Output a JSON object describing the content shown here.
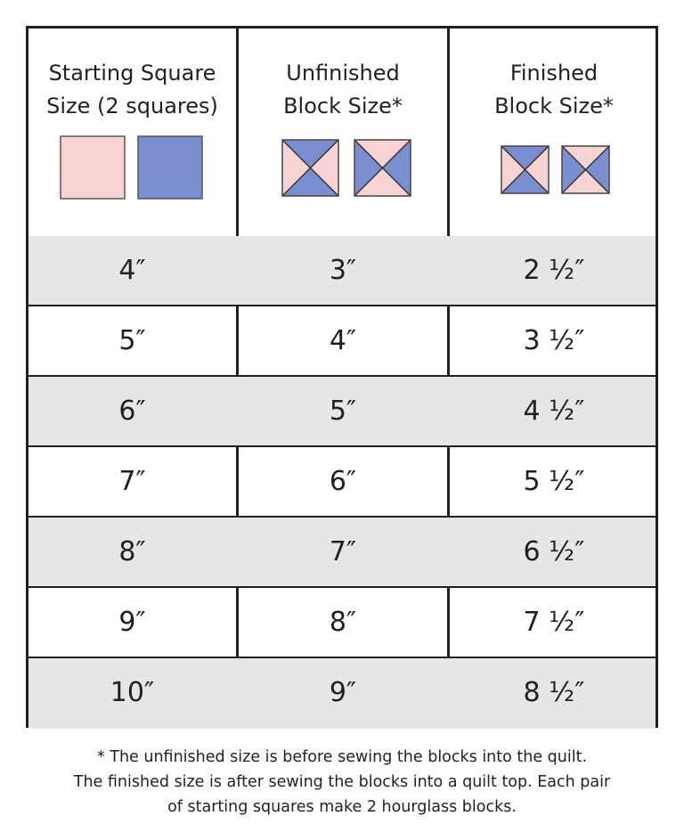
{
  "headers": [
    "Starting Square\nSize (2 squares)",
    "Unfinished\nBlock Size*",
    "Finished\nBlock Size*"
  ],
  "colors": {
    "pink": "#f7d3d3",
    "blue": "#7b8fd0",
    "row_grey": "#e6e6e8",
    "line": "#231f20"
  },
  "header_icons": [
    "pink-square",
    "blue-square",
    "hourglass-block-blue-top",
    "hourglass-block-pink-top"
  ],
  "rows": [
    [
      "4″",
      "3″",
      "2 ½″"
    ],
    [
      "5″",
      "4″",
      "3 ½″"
    ],
    [
      "6″",
      "5″",
      "4 ½″"
    ],
    [
      "7″",
      "6″",
      "5 ½″"
    ],
    [
      "8″",
      "7″",
      "6 ½″"
    ],
    [
      "9″",
      "8″",
      "7 ½″"
    ],
    [
      "10″",
      "9″",
      "8 ½″"
    ]
  ],
  "footnote": [
    "* The unfinished size is before sewing the blocks into the quilt.",
    "The finished size is after sewing the blocks into a quilt top.  Each pair",
    "of starting squares make 2 hourglass blocks."
  ]
}
